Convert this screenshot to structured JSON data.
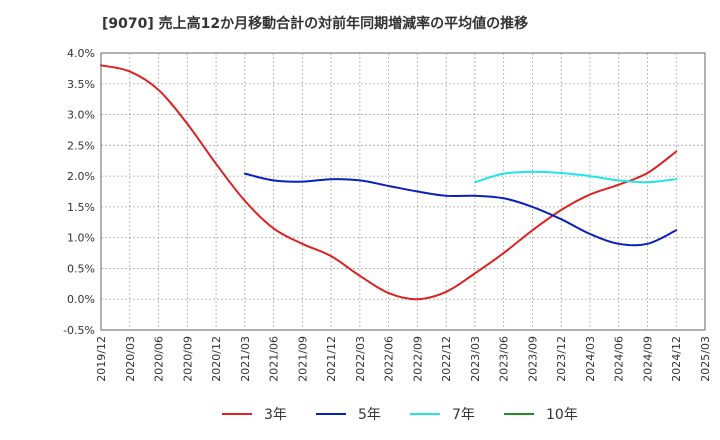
{
  "chart_data": {
    "type": "line",
    "title": "[9070]  売上高12か月移動合計の対前年同期増減率の平均値の推移",
    "xlabel": "",
    "ylabel": "",
    "ylim": [
      -0.5,
      4.0
    ],
    "y_ticks": [
      "4.0%",
      "3.5%",
      "3.0%",
      "2.5%",
      "2.0%",
      "1.5%",
      "1.0%",
      "0.5%",
      "0.0%",
      "-0.5%"
    ],
    "y_tick_values": [
      4.0,
      3.5,
      3.0,
      2.5,
      2.0,
      1.5,
      1.0,
      0.5,
      0.0,
      -0.5
    ],
    "x_ticks": [
      "2019/12",
      "2020/03",
      "2020/06",
      "2020/09",
      "2020/12",
      "2021/03",
      "2021/06",
      "2021/09",
      "2021/12",
      "2022/03",
      "2022/06",
      "2022/09",
      "2022/12",
      "2023/03",
      "2023/06",
      "2023/09",
      "2023/12",
      "2024/03",
      "2024/06",
      "2024/09",
      "2024/12",
      "2025/03"
    ],
    "grid": true,
    "legend_position": "bottom",
    "series": [
      {
        "name": "3年",
        "color": "#dd2222",
        "x": [
          "2019/12",
          "2020/03",
          "2020/06",
          "2020/09",
          "2020/12",
          "2021/03",
          "2021/06",
          "2021/09",
          "2021/12",
          "2022/03",
          "2022/06",
          "2022/09",
          "2022/12",
          "2023/03",
          "2023/06",
          "2023/09",
          "2023/12",
          "2024/03",
          "2024/06",
          "2024/09",
          "2024/12"
        ],
        "values": [
          3.8,
          3.7,
          3.4,
          2.85,
          2.2,
          1.6,
          1.15,
          0.9,
          0.7,
          0.38,
          0.1,
          0.0,
          0.12,
          0.42,
          0.75,
          1.12,
          1.45,
          1.7,
          1.86,
          2.05,
          2.4
        ]
      },
      {
        "name": "5年",
        "color": "#0a1fbf",
        "x": [
          "2021/03",
          "2021/06",
          "2021/09",
          "2021/12",
          "2022/03",
          "2022/06",
          "2022/09",
          "2022/12",
          "2023/03",
          "2023/06",
          "2023/09",
          "2023/12",
          "2024/03",
          "2024/06",
          "2024/09",
          "2024/12"
        ],
        "values": [
          2.04,
          1.93,
          1.91,
          1.95,
          1.93,
          1.84,
          1.75,
          1.68,
          1.68,
          1.64,
          1.5,
          1.3,
          1.06,
          0.9,
          0.9,
          1.12
        ]
      },
      {
        "name": "7年",
        "color": "#22e5e5",
        "x": [
          "2023/03",
          "2023/06",
          "2023/09",
          "2023/12",
          "2024/03",
          "2024/06",
          "2024/09",
          "2024/12"
        ],
        "values": [
          1.9,
          2.04,
          2.07,
          2.05,
          2.0,
          1.93,
          1.9,
          1.95
        ]
      },
      {
        "name": "10年",
        "color": "#228b22",
        "x": [],
        "values": []
      }
    ]
  }
}
